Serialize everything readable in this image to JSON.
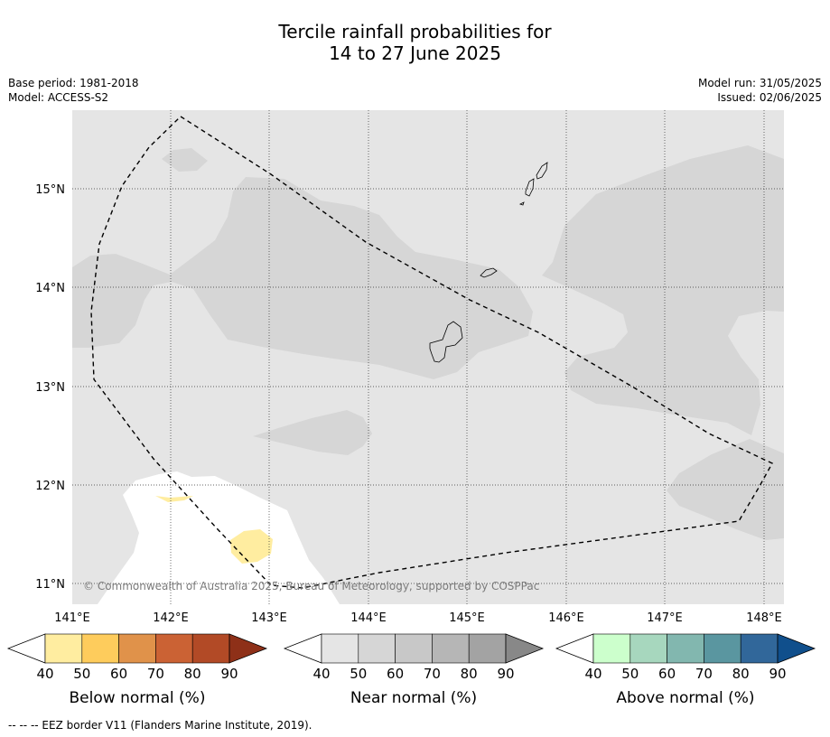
{
  "header": {
    "title_line1": "Tercile rainfall probabilities for",
    "title_line2": "14 to 27 June 2025",
    "base_period": "Base period: 1981-2018",
    "model": "Model: ACCESS-S2",
    "model_run": "Model run: 31/05/2025",
    "issued": "Issued: 02/06/2025"
  },
  "map": {
    "lon_ticks": [
      "141°E",
      "142°E",
      "143°E",
      "144°E",
      "145°E",
      "146°E",
      "147°E",
      "148°E"
    ],
    "lat_ticks": [
      "15°N",
      "14°N",
      "13°N",
      "12°N",
      "11°N"
    ],
    "credit": "© Commonwealth of Australia 2025, Bureau of Meteorology, supported by COSPPac",
    "colors": {
      "background_near": "#e5e5e5",
      "near_50": "#d6d6d6",
      "below_50": "#ffeda0",
      "no_dominant": "#ffffff",
      "eez_line": "#000000"
    }
  },
  "colorbars": [
    {
      "label": "Below normal (%)",
      "ticks": [
        "40",
        "50",
        "60",
        "70",
        "80",
        "90"
      ],
      "colors": [
        "#ffeda0",
        "#fecc5c",
        "#e0924a",
        "#cb6234",
        "#b24a26",
        "#8e3018"
      ]
    },
    {
      "label": "Near normal (%)",
      "ticks": [
        "40",
        "50",
        "60",
        "70",
        "80",
        "90"
      ],
      "colors": [
        "#e5e5e5",
        "#d6d6d6",
        "#c8c8c8",
        "#b6b6b6",
        "#a3a3a3",
        "#888888"
      ]
    },
    {
      "label": "Above normal (%)",
      "ticks": [
        "40",
        "50",
        "60",
        "70",
        "80",
        "90"
      ],
      "colors": [
        "#ccffcc",
        "#a7d7be",
        "#82b7af",
        "#5a96a0",
        "#31679a",
        "#104f8c"
      ]
    }
  ],
  "footnote": "--  --  -- EEZ border V11 (Flanders Marine Institute, 2019)."
}
